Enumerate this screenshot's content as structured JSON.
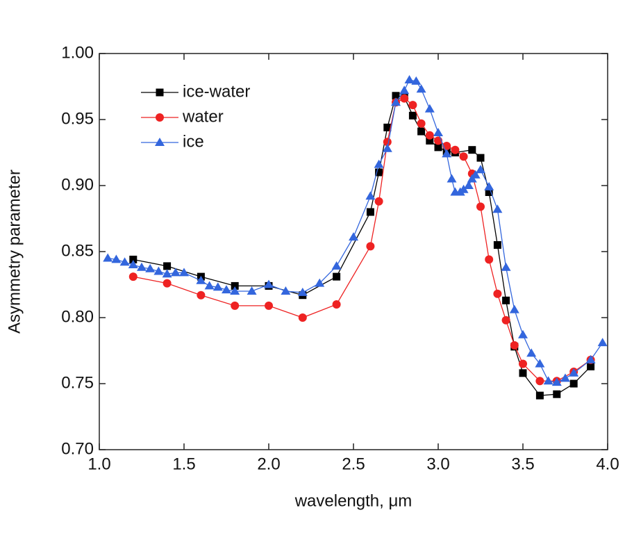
{
  "chart_data": {
    "type": "line",
    "x_label": "wavelength, μm",
    "y_label": "Asymmetry parameter",
    "xlim": [
      1.0,
      4.0
    ],
    "ylim": [
      0.7,
      1.0
    ],
    "xticks": [
      {
        "value": 1.0,
        "label": "1.0"
      },
      1.5,
      {
        "value": 2.0,
        "label": "2.0"
      },
      2.5,
      {
        "value": 3.0,
        "label": "3.0"
      },
      3.5,
      {
        "value": 4.0,
        "label": "4.0"
      }
    ],
    "yticks": [
      {
        "value": 0.7,
        "label": "0.70"
      },
      0.75,
      {
        "value": 0.8,
        "label": "0.80"
      },
      0.85,
      {
        "value": 0.9,
        "label": "0.90"
      },
      0.95,
      {
        "value": 1.0,
        "label": "1.00"
      }
    ],
    "legend": "upper-left",
    "series": [
      {
        "name": "ice-water",
        "color": "#000000",
        "marker": "square",
        "x": [
          1.2,
          1.4,
          1.6,
          1.8,
          2.0,
          2.2,
          2.4,
          2.6,
          2.65,
          2.7,
          2.75,
          2.8,
          2.85,
          2.9,
          2.95,
          3.0,
          3.05,
          3.1,
          3.2,
          3.25,
          3.3,
          3.35,
          3.4,
          3.45,
          3.5,
          3.6,
          3.7,
          3.8,
          3.9
        ],
        "values": [
          0.844,
          0.839,
          0.831,
          0.824,
          0.824,
          0.817,
          0.831,
          0.88,
          0.91,
          0.944,
          0.968,
          0.967,
          0.953,
          0.941,
          0.934,
          0.929,
          0.926,
          0.925,
          0.927,
          0.921,
          0.895,
          0.855,
          0.813,
          0.778,
          0.758,
          0.741,
          0.742,
          0.75,
          0.763
        ]
      },
      {
        "name": "water",
        "color": "#ee2222",
        "marker": "circle",
        "x": [
          1.2,
          1.4,
          1.6,
          1.8,
          2.0,
          2.2,
          2.4,
          2.6,
          2.65,
          2.7,
          2.75,
          2.8,
          2.85,
          2.9,
          2.95,
          3.0,
          3.05,
          3.1,
          3.15,
          3.2,
          3.25,
          3.3,
          3.35,
          3.4,
          3.45,
          3.5,
          3.6,
          3.7,
          3.8,
          3.9
        ],
        "values": [
          0.831,
          0.826,
          0.817,
          0.809,
          0.809,
          0.8,
          0.81,
          0.854,
          0.888,
          0.933,
          0.963,
          0.966,
          0.961,
          0.947,
          0.938,
          0.934,
          0.93,
          0.927,
          0.922,
          0.909,
          0.884,
          0.844,
          0.818,
          0.798,
          0.779,
          0.765,
          0.752,
          0.752,
          0.759,
          0.768
        ]
      },
      {
        "name": "ice",
        "color": "#3366dd",
        "marker": "triangle",
        "x": [
          1.05,
          1.1,
          1.15,
          1.2,
          1.25,
          1.3,
          1.35,
          1.4,
          1.45,
          1.5,
          1.6,
          1.65,
          1.7,
          1.75,
          1.8,
          1.9,
          2.0,
          2.1,
          2.2,
          2.3,
          2.4,
          2.5,
          2.6,
          2.65,
          2.7,
          2.75,
          2.8,
          2.83,
          2.87,
          2.9,
          2.95,
          3.0,
          3.05,
          3.08,
          3.1,
          3.13,
          3.15,
          3.18,
          3.2,
          3.22,
          3.25,
          3.3,
          3.35,
          3.4,
          3.45,
          3.5,
          3.55,
          3.6,
          3.65,
          3.7,
          3.75,
          3.8,
          3.9,
          3.97
        ],
        "values": [
          0.845,
          0.844,
          0.842,
          0.84,
          0.838,
          0.837,
          0.835,
          0.833,
          0.834,
          0.834,
          0.828,
          0.824,
          0.823,
          0.821,
          0.82,
          0.82,
          0.825,
          0.82,
          0.819,
          0.826,
          0.839,
          0.861,
          0.892,
          0.916,
          0.928,
          0.963,
          0.972,
          0.98,
          0.979,
          0.973,
          0.958,
          0.94,
          0.924,
          0.905,
          0.895,
          0.895,
          0.897,
          0.9,
          0.905,
          0.908,
          0.912,
          0.899,
          0.882,
          0.838,
          0.806,
          0.787,
          0.773,
          0.765,
          0.752,
          0.751,
          0.754,
          0.758,
          0.768,
          0.781
        ]
      }
    ]
  }
}
